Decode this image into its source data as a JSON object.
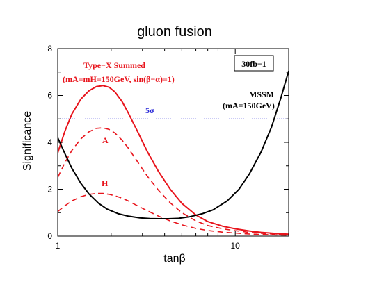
{
  "chart_data": {
    "type": "line",
    "title": "gluon fusion",
    "xlabel": "tanβ",
    "ylabel": "Significance",
    "x_scale": "log",
    "xlim": [
      1,
      20
    ],
    "ylim": [
      0,
      8
    ],
    "x_ticks": [
      {
        "value": 1,
        "label": "1"
      },
      {
        "value": 10,
        "label": "10"
      }
    ],
    "y_ticks": [
      {
        "value": 0,
        "label": "0"
      },
      {
        "value": 2,
        "label": "2"
      },
      {
        "value": 4,
        "label": "4"
      },
      {
        "value": 6,
        "label": "6"
      },
      {
        "value": 8,
        "label": "8"
      }
    ],
    "grid": false,
    "series": [
      {
        "name": "Type-X Summed",
        "color": "#e8141c",
        "style": "solid",
        "x": [
          1.0,
          1.1,
          1.2,
          1.35,
          1.5,
          1.65,
          1.8,
          1.95,
          2.1,
          2.3,
          2.5,
          2.8,
          3.2,
          3.7,
          4.3,
          5.0,
          6.0,
          7.0,
          8.5,
          10.0,
          12.0,
          14.0,
          17.0,
          20.0
        ],
        "y": [
          3.55,
          4.5,
          5.2,
          5.85,
          6.2,
          6.38,
          6.42,
          6.35,
          6.15,
          5.75,
          5.25,
          4.5,
          3.6,
          2.75,
          2.0,
          1.4,
          0.9,
          0.62,
          0.42,
          0.31,
          0.22,
          0.16,
          0.11,
          0.08
        ]
      },
      {
        "name": "A",
        "color": "#e8141c",
        "style": "dashed",
        "x": [
          1.0,
          1.1,
          1.2,
          1.35,
          1.5,
          1.65,
          1.8,
          1.95,
          2.1,
          2.3,
          2.5,
          2.8,
          3.2,
          3.7,
          4.3,
          5.0,
          6.0,
          7.0,
          8.5,
          10.0,
          12.0,
          14.0,
          17.0,
          20.0
        ],
        "y": [
          2.5,
          3.15,
          3.65,
          4.15,
          4.45,
          4.6,
          4.62,
          4.55,
          4.4,
          4.1,
          3.75,
          3.2,
          2.55,
          1.95,
          1.42,
          1.0,
          0.65,
          0.45,
          0.31,
          0.23,
          0.16,
          0.12,
          0.08,
          0.06
        ]
      },
      {
        "name": "H",
        "color": "#e8141c",
        "style": "dashed",
        "x": [
          1.0,
          1.1,
          1.2,
          1.35,
          1.5,
          1.65,
          1.8,
          1.95,
          2.1,
          2.3,
          2.5,
          2.8,
          3.2,
          3.7,
          4.3,
          5.0,
          6.0,
          7.0,
          8.5,
          10.0,
          12.0,
          14.0,
          17.0,
          20.0
        ],
        "y": [
          1.05,
          1.3,
          1.5,
          1.68,
          1.78,
          1.82,
          1.82,
          1.78,
          1.72,
          1.62,
          1.5,
          1.3,
          1.08,
          0.85,
          0.65,
          0.48,
          0.33,
          0.24,
          0.17,
          0.13,
          0.09,
          0.07,
          0.05,
          0.04
        ]
      },
      {
        "name": "MSSM",
        "color": "#000000",
        "style": "solid",
        "x": [
          1.0,
          1.1,
          1.2,
          1.35,
          1.5,
          1.7,
          1.9,
          2.2,
          2.5,
          2.9,
          3.3,
          3.7,
          4.2,
          4.8,
          5.5,
          6.5,
          7.5,
          9.0,
          10.5,
          12.0,
          14.0,
          16.0,
          18.0,
          20.0
        ],
        "y": [
          4.2,
          3.5,
          2.9,
          2.25,
          1.8,
          1.4,
          1.15,
          0.95,
          0.85,
          0.78,
          0.75,
          0.74,
          0.74,
          0.76,
          0.82,
          0.95,
          1.12,
          1.5,
          2.0,
          2.65,
          3.6,
          4.65,
          5.85,
          7.05
        ]
      },
      {
        "name": "5σ",
        "color": "#2a2ad8",
        "style": "dotted",
        "x": [
          1,
          20
        ],
        "y": [
          5,
          5
        ]
      }
    ],
    "annotations": {
      "type_x": "Type−X Summed",
      "params": "(mA=mH=150GeV, sin(β−α)=1)",
      "a_label": "A",
      "h_label": "H",
      "five_sigma": "5σ",
      "mssm": "MSSM",
      "mssm_params": "(mA=150GeV)",
      "luminosity": "30fb−1"
    }
  }
}
